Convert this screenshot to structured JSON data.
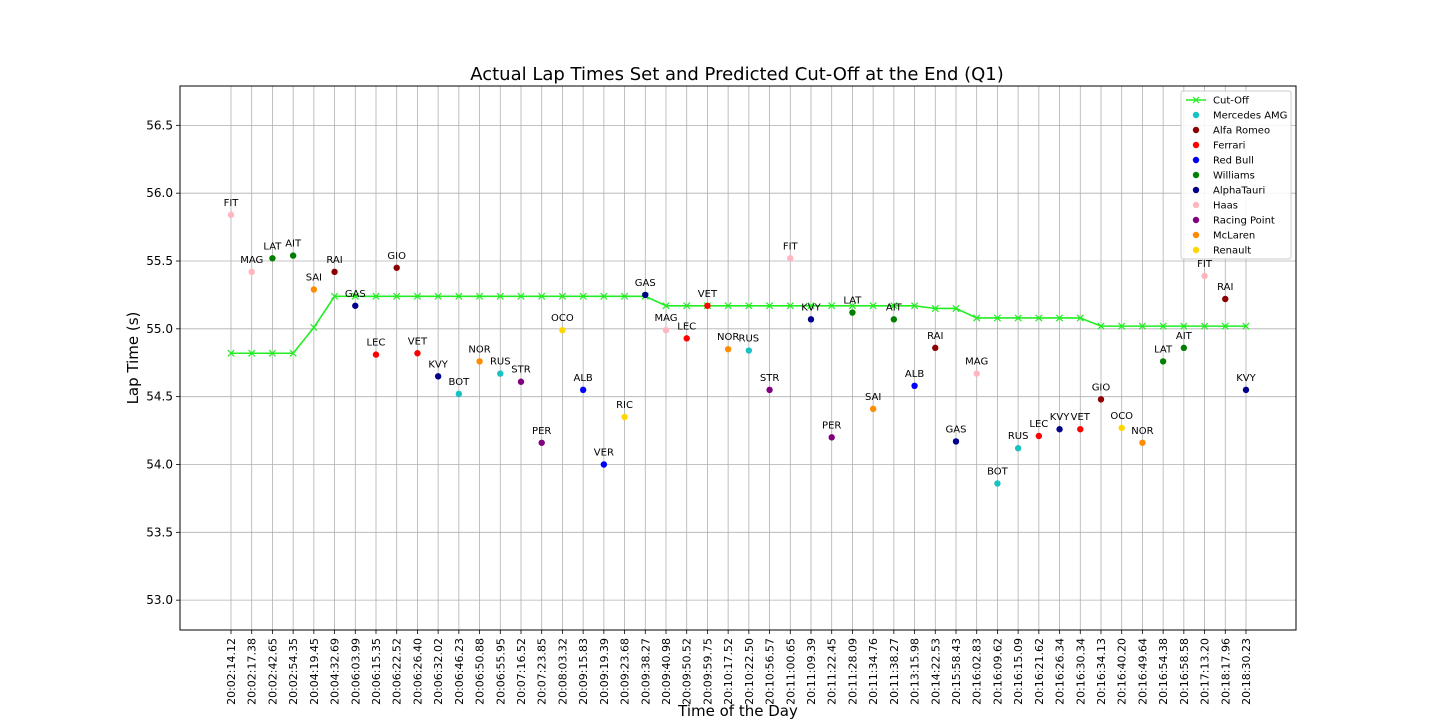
{
  "chart_data": {
    "type": "scatter",
    "title": "Actual Lap Times Set and Predicted Cut-Off at the End (Q1)",
    "xlabel": "Time of the Day",
    "ylabel": "Lap Time (s)",
    "ylim": [
      52.78,
      56.79
    ],
    "yticks": [
      53.0,
      53.5,
      54.0,
      54.5,
      55.0,
      55.5,
      56.0,
      56.5
    ],
    "grid": true,
    "legend_position": "top-right",
    "categories": [
      "20:02:14.12",
      "20:02:17.38",
      "20:02:42.65",
      "20:02:54.35",
      "20:04:19.45",
      "20:04:32.69",
      "20:06:03.99",
      "20:06:15.35",
      "20:06:22.52",
      "20:06:26.40",
      "20:06:32.02",
      "20:06:46.23",
      "20:06:50.88",
      "20:06:55.95",
      "20:07:16.52",
      "20:07:23.85",
      "20:08:03.32",
      "20:09:15.83",
      "20:09:19.39",
      "20:09:23.68",
      "20:09:38.27",
      "20:09:40.98",
      "20:09:50.52",
      "20:09:59.75",
      "20:10:17.52",
      "20:10:22.50",
      "20:10:56.57",
      "20:11:00.65",
      "20:11:09.39",
      "20:11:22.45",
      "20:11:28.09",
      "20:11:34.76",
      "20:11:38.27",
      "20:13:15.98",
      "20:14:22.53",
      "20:15:58.43",
      "20:16:02.83",
      "20:16:09.62",
      "20:16:15.09",
      "20:16:21.62",
      "20:16:26.34",
      "20:16:30.34",
      "20:16:34.13",
      "20:16:40.20",
      "20:16:49.64",
      "20:16:54.38",
      "20:16:58.58",
      "20:17:13.20",
      "20:18:17.96",
      "20:18:30.23"
    ],
    "cutoff": {
      "name": "Cut-Off",
      "color": "#22ee22",
      "values": [
        54.82,
        54.82,
        54.82,
        54.82,
        55.01,
        55.24,
        55.24,
        55.24,
        55.24,
        55.24,
        55.24,
        55.24,
        55.24,
        55.24,
        55.24,
        55.24,
        55.24,
        55.24,
        55.24,
        55.24,
        55.24,
        55.17,
        55.17,
        55.17,
        55.17,
        55.17,
        55.17,
        55.17,
        55.17,
        55.17,
        55.17,
        55.17,
        55.17,
        55.17,
        55.15,
        55.15,
        55.08,
        55.08,
        55.08,
        55.08,
        55.08,
        55.08,
        55.02,
        55.02,
        55.02,
        55.02,
        55.02,
        55.02,
        55.02,
        55.02
      ]
    },
    "teams": [
      {
        "name": "Mercedes AMG",
        "color": "#19c2c2"
      },
      {
        "name": "Alfa Romeo",
        "color": "#8b0000"
      },
      {
        "name": "Ferrari",
        "color": "#ff0000"
      },
      {
        "name": "Red Bull",
        "color": "#0000ff"
      },
      {
        "name": "Williams",
        "color": "#007f00"
      },
      {
        "name": "AlphaTauri",
        "color": "#00008b"
      },
      {
        "name": "Haas",
        "color": "#ffb6c1"
      },
      {
        "name": "Racing Point",
        "color": "#800080"
      },
      {
        "name": "McLaren",
        "color": "#ff8c00"
      },
      {
        "name": "Renault",
        "color": "#ffd700"
      }
    ],
    "points": [
      {
        "driver": "FIT",
        "team": "Haas",
        "y": 55.84
      },
      {
        "driver": "MAG",
        "team": "Haas",
        "y": 55.42
      },
      {
        "driver": "LAT",
        "team": "Williams",
        "y": 55.52
      },
      {
        "driver": "AIT",
        "team": "Williams",
        "y": 55.54
      },
      {
        "driver": "SAI",
        "team": "McLaren",
        "y": 55.29
      },
      {
        "driver": "RAI",
        "team": "Alfa Romeo",
        "y": 55.42
      },
      {
        "driver": "GAS",
        "team": "AlphaTauri",
        "y": 55.17
      },
      {
        "driver": "LEC",
        "team": "Ferrari",
        "y": 54.81
      },
      {
        "driver": "GIO",
        "team": "Alfa Romeo",
        "y": 55.45
      },
      {
        "driver": "VET",
        "team": "Ferrari",
        "y": 54.82
      },
      {
        "driver": "KVY",
        "team": "AlphaTauri",
        "y": 54.65
      },
      {
        "driver": "BOT",
        "team": "Mercedes AMG",
        "y": 54.52
      },
      {
        "driver": "NOR",
        "team": "McLaren",
        "y": 54.76
      },
      {
        "driver": "RUS",
        "team": "Mercedes AMG",
        "y": 54.67
      },
      {
        "driver": "STR",
        "team": "Racing Point",
        "y": 54.61
      },
      {
        "driver": "PER",
        "team": "Racing Point",
        "y": 54.16
      },
      {
        "driver": "OCO",
        "team": "Renault",
        "y": 54.99
      },
      {
        "driver": "ALB",
        "team": "Red Bull",
        "y": 54.55
      },
      {
        "driver": "VER",
        "team": "Red Bull",
        "y": 54.0
      },
      {
        "driver": "RIC",
        "team": "Renault",
        "y": 54.35
      },
      {
        "driver": "GAS",
        "team": "AlphaTauri",
        "y": 55.25
      },
      {
        "driver": "MAG",
        "team": "Haas",
        "y": 54.99
      },
      {
        "driver": "LEC",
        "team": "Ferrari",
        "y": 54.93
      },
      {
        "driver": "VET",
        "team": "Ferrari",
        "y": 55.17
      },
      {
        "driver": "NOR",
        "team": "McLaren",
        "y": 54.85
      },
      {
        "driver": "RUS",
        "team": "Mercedes AMG",
        "y": 54.84
      },
      {
        "driver": "STR",
        "team": "Racing Point",
        "y": 54.55
      },
      {
        "driver": "FIT",
        "team": "Haas",
        "y": 55.52
      },
      {
        "driver": "KVY",
        "team": "AlphaTauri",
        "y": 55.07
      },
      {
        "driver": "PER",
        "team": "Racing Point",
        "y": 54.2
      },
      {
        "driver": "LAT",
        "team": "Williams",
        "y": 55.12
      },
      {
        "driver": "SAI",
        "team": "McLaren",
        "y": 54.41
      },
      {
        "driver": "AIT",
        "team": "Williams",
        "y": 55.07
      },
      {
        "driver": "ALB",
        "team": "Red Bull",
        "y": 54.58
      },
      {
        "driver": "RAI",
        "team": "Alfa Romeo",
        "y": 54.86
      },
      {
        "driver": "GAS",
        "team": "AlphaTauri",
        "y": 54.17
      },
      {
        "driver": "MAG",
        "team": "Haas",
        "y": 54.67
      },
      {
        "driver": "BOT",
        "team": "Mercedes AMG",
        "y": 53.86
      },
      {
        "driver": "RUS",
        "team": "Mercedes AMG",
        "y": 54.12
      },
      {
        "driver": "LEC",
        "team": "Ferrari",
        "y": 54.21
      },
      {
        "driver": "KVY",
        "team": "AlphaTauri",
        "y": 54.26
      },
      {
        "driver": "VET",
        "team": "Ferrari",
        "y": 54.26
      },
      {
        "driver": "GIO",
        "team": "Alfa Romeo",
        "y": 54.48
      },
      {
        "driver": "OCO",
        "team": "Renault",
        "y": 54.27
      },
      {
        "driver": "NOR",
        "team": "McLaren",
        "y": 54.16
      },
      {
        "driver": "LAT",
        "team": "Williams",
        "y": 54.76
      },
      {
        "driver": "AIT",
        "team": "Williams",
        "y": 54.86
      },
      {
        "driver": "FIT",
        "team": "Haas",
        "y": 55.39
      },
      {
        "driver": "RAI",
        "team": "Alfa Romeo",
        "y": 55.22
      },
      {
        "driver": "KVY",
        "team": "AlphaTauri",
        "y": 54.55
      }
    ]
  }
}
